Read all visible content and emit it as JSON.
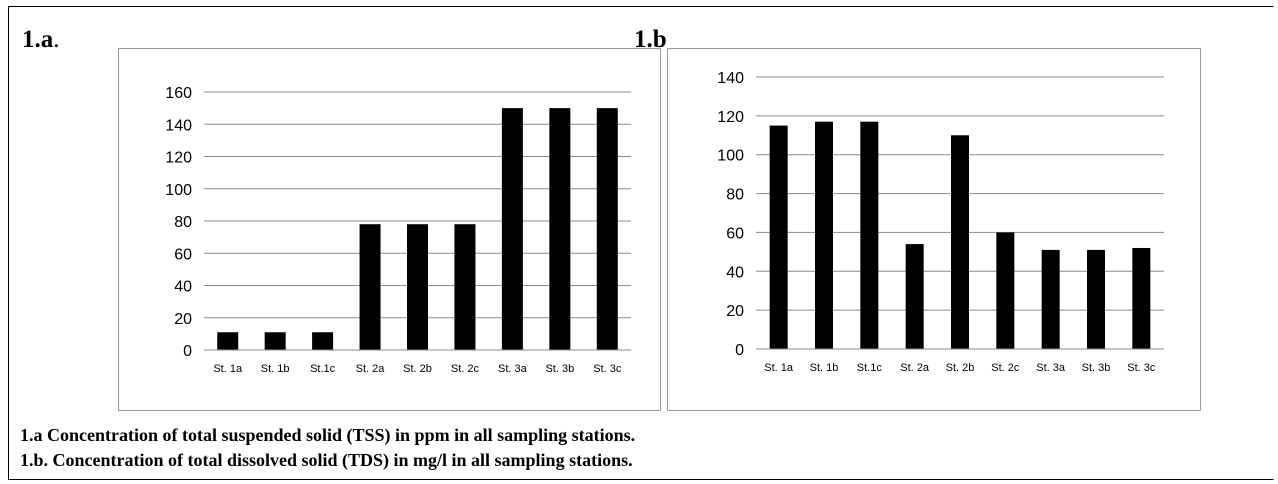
{
  "labels": {
    "a": "1.a",
    "a_suffix": ".",
    "b": "1.b"
  },
  "captions": [
    "1.a Concentration of total suspended solid (TSS) in ppm in all sampling stations.",
    "1.b. Concentration of total dissolved solid (TDS) in mg/l in all sampling stations."
  ],
  "chart_data": [
    {
      "type": "bar",
      "title": "",
      "xlabel": "",
      "ylabel": "",
      "categories": [
        "St. 1a",
        "St. 1b",
        "St.1c",
        "St. 2a",
        "St. 2b",
        "St. 2c",
        "St. 3a",
        "St. 3b",
        "St. 3c"
      ],
      "values": [
        11,
        11,
        11,
        78,
        78,
        78,
        150,
        150,
        150
      ],
      "ylim": [
        0,
        160
      ],
      "yticks": [
        0,
        20,
        40,
        60,
        80,
        100,
        120,
        140,
        160
      ],
      "grid": true,
      "bar_color": "#000000"
    },
    {
      "type": "bar",
      "title": "",
      "xlabel": "",
      "ylabel": "",
      "categories": [
        "St. 1a",
        "St. 1b",
        "St.1c",
        "St. 2a",
        "St. 2b",
        "St. 2c",
        "St. 3a",
        "St. 3b",
        "St. 3c"
      ],
      "values": [
        115,
        117,
        117,
        54,
        110,
        60,
        51,
        51,
        52
      ],
      "ylim": [
        0,
        140
      ],
      "yticks": [
        0,
        20,
        40,
        60,
        80,
        100,
        120,
        140
      ],
      "grid": true,
      "bar_color": "#000000"
    }
  ]
}
